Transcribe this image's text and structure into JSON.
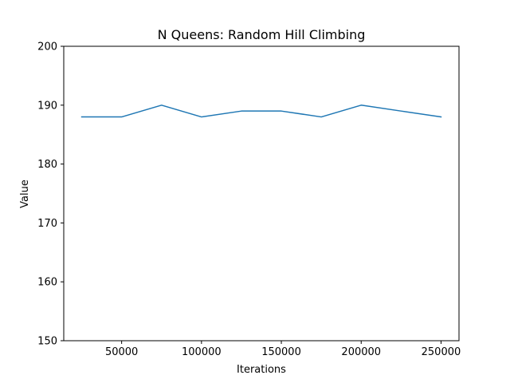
{
  "chart_data": {
    "type": "line",
    "title": "N Queens: Random Hill Climbing",
    "xlabel": "Iterations",
    "ylabel": "Value",
    "xlim": [
      13750,
      261250
    ],
    "ylim": [
      150,
      200
    ],
    "x_ticks": [
      50000,
      100000,
      150000,
      200000,
      250000
    ],
    "y_ticks": [
      150,
      160,
      170,
      180,
      190,
      200
    ],
    "grid": false,
    "series": [
      {
        "name": "Random Hill Climbing",
        "color": "#1f77b4",
        "x": [
          25000,
          50000,
          75000,
          100000,
          125000,
          150000,
          175000,
          200000,
          225000,
          250000
        ],
        "y": [
          188,
          188,
          190,
          188,
          189,
          189,
          188,
          190,
          189,
          188
        ]
      }
    ]
  }
}
